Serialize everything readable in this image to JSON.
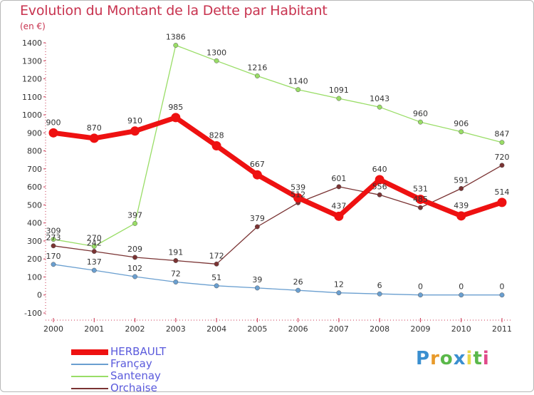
{
  "title": "Evolution du Montant de la Dette par Habitant",
  "subtitle": "(en €)",
  "logo": {
    "text": "Proxiti",
    "colors": [
      "#3a8fd0",
      "#e89a2a",
      "#5ab84a",
      "#3a8fd0",
      "#e8d84a",
      "#5ab84a",
      "#e04a8a"
    ]
  },
  "chart_data": {
    "type": "line",
    "x": [
      "2000",
      "2001",
      "2002",
      "2003",
      "2004",
      "2005",
      "2006",
      "2007",
      "2008",
      "2009",
      "2010",
      "2011"
    ],
    "ylim": [
      -100,
      1400
    ],
    "yticks": [
      -100,
      0,
      100,
      200,
      300,
      400,
      500,
      600,
      700,
      800,
      900,
      1000,
      1100,
      1200,
      1300,
      1400
    ],
    "grid": false,
    "legend_position": "bottom-left",
    "series": [
      {
        "name": "HERBAULT",
        "color": "#ee1111",
        "values": [
          900,
          870,
          910,
          985,
          828,
          667,
          539,
          437,
          640,
          531,
          439,
          514
        ]
      },
      {
        "name": "Françay",
        "color": "#6a9fd0",
        "values": [
          170,
          137,
          102,
          72,
          51,
          39,
          26,
          12,
          6,
          0,
          0,
          0
        ]
      },
      {
        "name": "Santenay",
        "color": "#99dd66",
        "values": [
          309,
          270,
          397,
          1386,
          1300,
          1216,
          1140,
          1091,
          1043,
          960,
          906,
          847
        ]
      },
      {
        "name": "Orchaise",
        "color": "#7a3333",
        "values": [
          273,
          242,
          209,
          191,
          172,
          379,
          512,
          601,
          556,
          485,
          591,
          720
        ]
      }
    ]
  }
}
